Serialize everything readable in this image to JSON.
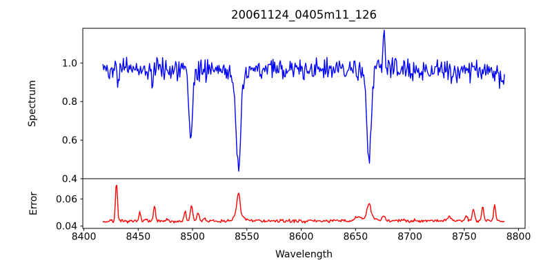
{
  "figure": {
    "background_color": "#ffffff",
    "axis_color": "#000000",
    "text_color": "#000000"
  },
  "chart_data": {
    "type": "line",
    "title": "20061124_0405m11_126",
    "xlabel": "Wavelength",
    "xlim": [
      8399,
      8806
    ],
    "xticks": [
      8400,
      8450,
      8500,
      8550,
      8600,
      8650,
      8700,
      8750,
      8800
    ],
    "grid": false,
    "legend": false,
    "description": "Two stacked panels sharing the wavelength axis: top shows a normalized stellar spectrum (blue) with Ca II triplet absorption lines at 8498, 8542 and 8662 Angstroms; bottom shows the error spectrum (red) with sky-residual peaks.",
    "panels": [
      {
        "ylabel": "Spectrum",
        "ylim": [
          0.4,
          1.18
        ],
        "yticks": [
          0.4,
          0.6,
          0.8,
          1.0
        ],
        "ytick_labels": [
          "0.4",
          "0.6",
          "0.8",
          "1.0"
        ],
        "series": {
          "name": "spectrum",
          "color": "#0000ff",
          "x_start": 8417.5,
          "x_end": 8787,
          "n_points": 492,
          "baseline": 0.972,
          "baseline_slope": -3e-05,
          "noise_std": 0.027,
          "seed": 42,
          "features": [
            [
              8429.6,
              0.09,
              0.6
            ],
            [
              8430.9,
              -0.13,
              0.7
            ],
            [
              8463.0,
              -0.11,
              0.8
            ],
            [
              8498.3,
              -0.355,
              1.7
            ],
            [
              8498.3,
              -0.02,
              5
            ],
            [
              8542.3,
              -0.47,
              2.2
            ],
            [
              8542.3,
              -0.05,
              6
            ],
            [
              8662.3,
              -0.43,
              2.0
            ],
            [
              8662.3,
              -0.04,
              5
            ],
            [
              8670.5,
              0.05,
              2.5
            ],
            [
              8676.2,
              0.18,
              1.0
            ],
            [
              8786.0,
              -0.05,
              3
            ]
          ],
          "key_points": {
            "line_8498_core": 0.59,
            "line_8542_core": 0.44,
            "line_8662_core": 0.48,
            "spike_8676_peak": 1.15,
            "continuum": 0.97
          }
        }
      },
      {
        "ylabel": "Error",
        "ylim": [
          0.0383,
          0.0749
        ],
        "yticks": [
          0.04,
          0.06
        ],
        "ytick_labels": [
          "0.04",
          "0.06"
        ],
        "series": {
          "name": "error",
          "color": "#ff0000",
          "x_start": 8417.5,
          "x_end": 8787,
          "n_points": 492,
          "baseline": 0.0433,
          "baseline_slope": 2.5e-06,
          "noise_std": 0.0006,
          "seed": 7,
          "features": [
            [
              8424.0,
              0.0012,
              0.8
            ],
            [
              8430.0,
              0.0293,
              0.9
            ],
            [
              8451.5,
              0.0085,
              0.8
            ],
            [
              8457.0,
              0.002,
              0.8
            ],
            [
              8465.0,
              0.0115,
              0.9
            ],
            [
              8476.0,
              0.0012,
              1.0
            ],
            [
              8493.0,
              0.0075,
              1.0
            ],
            [
              8499.0,
              0.0105,
              1.2
            ],
            [
              8505.0,
              0.0065,
              1.0
            ],
            [
              8511.0,
              0.003,
              0.8
            ],
            [
              8542.3,
              0.018,
              1.5
            ],
            [
              8542.0,
              0.003,
              5
            ],
            [
              8560.0,
              0.0012,
              1.5
            ],
            [
              8652.0,
              0.0028,
              2.0
            ],
            [
              8662.3,
              0.01,
              1.7
            ],
            [
              8662.0,
              0.0025,
              5
            ],
            [
              8676.0,
              0.0038,
              1.4
            ],
            [
              8736.0,
              0.0028,
              1.4
            ],
            [
              8752.0,
              0.0038,
              0.9
            ],
            [
              8758.5,
              0.0085,
              1.0
            ],
            [
              8767.0,
              0.0095,
              1.0
            ],
            [
              8778.0,
              0.0128,
              0.8
            ],
            [
              8785.0,
              -0.0012,
              2.0
            ]
          ],
          "key_points": {
            "peak_8430": 0.073,
            "peak_8542": 0.065,
            "peak_8662": 0.057,
            "peak_8778": 0.057,
            "baseline_level": 0.043
          }
        }
      }
    ]
  }
}
